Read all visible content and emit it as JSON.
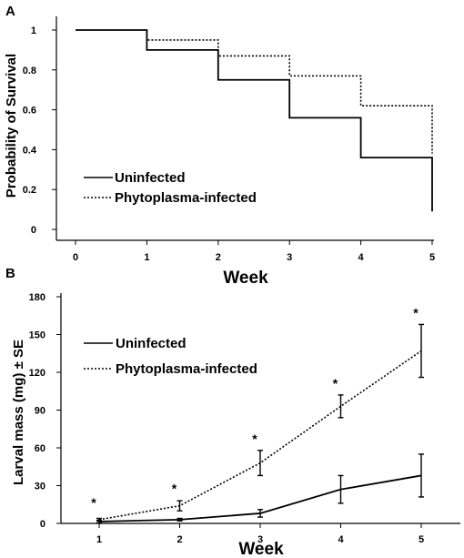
{
  "panels": [
    {
      "letter": "A",
      "chart_data": {
        "type": "line",
        "step": true,
        "xlabel": "Week",
        "ylabel": "Probability of Survival",
        "xlim": [
          0,
          5
        ],
        "ylim": [
          0,
          1
        ],
        "xticks": [
          "0",
          "1",
          "2",
          "3",
          "4",
          "5"
        ],
        "yticks": [
          "0",
          "0.2",
          "0.4",
          "0.6",
          "0.8",
          "1"
        ],
        "legend_position": "bottom-left",
        "series": [
          {
            "name": "Uninfected",
            "style": "solid",
            "color": "#000000",
            "x": [
              0,
              1,
              1,
              2,
              2,
              3,
              3,
              4,
              4,
              5,
              5
            ],
            "y": [
              1.0,
              1.0,
              0.9,
              0.9,
              0.75,
              0.75,
              0.56,
              0.56,
              0.36,
              0.36,
              0.09
            ]
          },
          {
            "name": "Phytoplasma-infected",
            "style": "dotted",
            "color": "#000000",
            "x": [
              1,
              1,
              2,
              2,
              3,
              3,
              4,
              4,
              5,
              5
            ],
            "y": [
              1.0,
              0.95,
              0.95,
              0.87,
              0.87,
              0.77,
              0.77,
              0.62,
              0.62,
              0.38
            ]
          }
        ]
      }
    },
    {
      "letter": "B",
      "chart_data": {
        "type": "line",
        "xlabel": "Week",
        "ylabel": "Larval mass (mg) ± SE",
        "xlim": [
          0.5,
          5.5
        ],
        "ylim": [
          0,
          180
        ],
        "x": [
          1,
          2,
          3,
          4,
          5
        ],
        "xticks": [
          "1",
          "2",
          "3",
          "4",
          "5"
        ],
        "yticks": [
          "0",
          "30",
          "60",
          "90",
          "120",
          "150",
          "180"
        ],
        "legend_position": "top-left",
        "significance_marker": "*",
        "significance_at": [
          1,
          2,
          3,
          4,
          5
        ],
        "series": [
          {
            "name": "Uninfected",
            "style": "solid",
            "color": "#000000",
            "values": [
              1.5,
              3,
              8,
              27,
              38
            ],
            "se": [
              1,
              1,
              3,
              11,
              17
            ]
          },
          {
            "name": "Phytoplasma-infected",
            "style": "dotted",
            "color": "#000000",
            "values": [
              3,
              14,
              48,
              93,
              137
            ],
            "se": [
              1,
              4,
              10,
              9,
              21
            ]
          }
        ]
      }
    }
  ]
}
